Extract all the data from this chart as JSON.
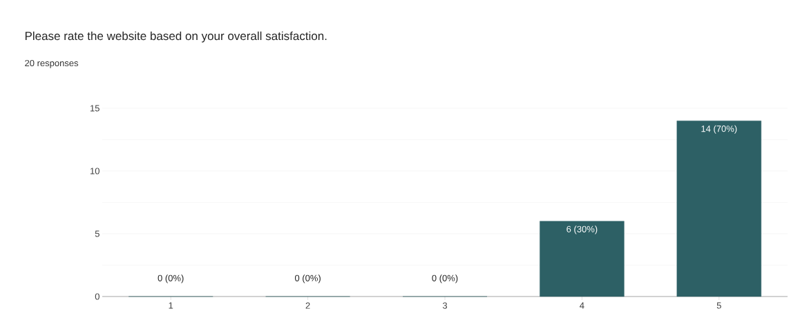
{
  "chart_data": {
    "type": "bar",
    "title": "Please rate the website based on your overall satisfaction.",
    "subtitle": "20 responses",
    "categories": [
      "1",
      "2",
      "3",
      "4",
      "5"
    ],
    "values": [
      0,
      0,
      0,
      6,
      14
    ],
    "value_labels": [
      "0 (0%)",
      "0 (0%)",
      "0 (0%)",
      "6 (30%)",
      "14 (70%)"
    ],
    "color": "#2d6065",
    "ylim": [
      0,
      15
    ],
    "yticks": [
      0,
      {
        "value": 2.5,
        "label": null
      },
      5,
      {
        "value": 7.5,
        "label": null
      },
      10,
      {
        "value": 12.5,
        "label": null
      },
      15
    ],
    "grid": "y"
  }
}
